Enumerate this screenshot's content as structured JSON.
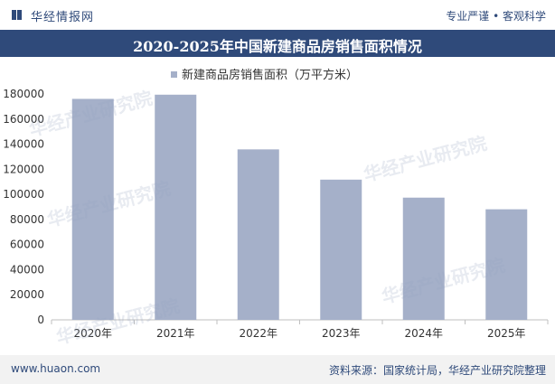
{
  "header": {
    "brand": "华经情报网",
    "tagline": "专业严谨 • 客观科学",
    "title": "2020-2025年中国新建商品房销售面积情况"
  },
  "watermark": "华经产业研究院",
  "footer": {
    "site": "www.huaon.com",
    "source": "资料来源：国家统计局，华经产业研究院整理"
  },
  "colors": {
    "bar": "#a5b0c9",
    "header_bg": "#2f4a7a"
  },
  "chart_data": {
    "type": "bar",
    "categories": [
      "2020年",
      "2021年",
      "2022年",
      "2023年",
      "2024年",
      "2025年"
    ],
    "series": [
      {
        "name": "新建商品房销售面积（万平方米）",
        "values": [
          176086,
          179433,
          135837,
          111735,
          97385,
          88101
        ]
      }
    ],
    "y_ticks": [
      0,
      20000,
      40000,
      60000,
      80000,
      100000,
      120000,
      140000,
      160000,
      180000
    ],
    "ylim": [
      0,
      180000
    ],
    "grid": false,
    "legend": "top-center"
  }
}
